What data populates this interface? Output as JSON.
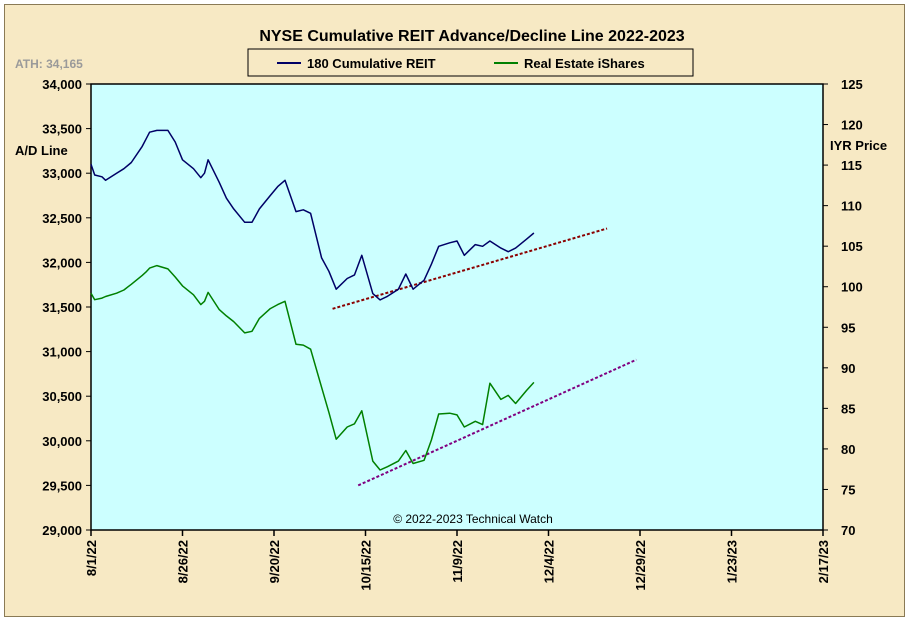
{
  "chart_data": {
    "type": "line",
    "title": "NYSE Cumulative  REIT Advance/Decline  Line 2022-2023",
    "ath_label": "ATH: 34,165",
    "copyright": "© 2022-2023  Technical  Watch",
    "left_axis": {
      "label": "A/D Line",
      "range": [
        29000,
        34000
      ],
      "ticks": [
        "29,000",
        "29,500",
        "30,000",
        "30,500",
        "31,000",
        "31,500",
        "32,000",
        "32,500",
        "33,000",
        "33,500",
        "34,000"
      ],
      "tick_values": [
        29000,
        29500,
        30000,
        30500,
        31000,
        31500,
        32000,
        32500,
        33000,
        33500,
        34000
      ]
    },
    "right_axis": {
      "label": "IYR Price",
      "range": [
        70,
        125
      ],
      "ticks": [
        "70",
        "75",
        "80",
        "85",
        "90",
        "95",
        "100",
        "105",
        "110",
        "115",
        "120",
        "125"
      ],
      "tick_values": [
        70,
        75,
        80,
        85,
        90,
        95,
        100,
        105,
        110,
        115,
        120,
        125
      ]
    },
    "x_axis": {
      "range": [
        "2022-08-01",
        "2023-02-17"
      ],
      "tick_labels": [
        "8/1/22",
        "8/26/22",
        "9/20/22",
        "10/15/22",
        "11/9/22",
        "12/4/22",
        "12/29/22",
        "1/23/23",
        "2/17/23"
      ],
      "tick_dates": [
        "2022-08-01",
        "2022-08-26",
        "2022-09-20",
        "2022-10-15",
        "2022-11-09",
        "2022-12-04",
        "2022-12-29",
        "2023-01-23",
        "2023-02-17"
      ]
    },
    "legend": {
      "placement": "top-center"
    },
    "grid": false,
    "colors": {
      "plot_bg": "#ccffff",
      "frame_bg": "#f7e9c4",
      "ad_line": "#000066",
      "iyr": "#008000",
      "trend_ad": "#8b0000",
      "trend_iyr": "#800080"
    },
    "series": [
      {
        "name": "180 Cumulative REIT",
        "axis": "left",
        "points": [
          [
            "2022-08-01",
            33100
          ],
          [
            "2022-08-02",
            32980
          ],
          [
            "2022-08-04",
            32960
          ],
          [
            "2022-08-05",
            32920
          ],
          [
            "2022-08-08",
            33000
          ],
          [
            "2022-08-10",
            33050
          ],
          [
            "2022-08-12",
            33120
          ],
          [
            "2022-08-15",
            33300
          ],
          [
            "2022-08-16",
            33380
          ],
          [
            "2022-08-17",
            33460
          ],
          [
            "2022-08-19",
            33480
          ],
          [
            "2022-08-22",
            33480
          ],
          [
            "2022-08-24",
            33350
          ],
          [
            "2022-08-26",
            33150
          ],
          [
            "2022-08-29",
            33050
          ],
          [
            "2022-08-31",
            32950
          ],
          [
            "2022-09-01",
            33000
          ],
          [
            "2022-09-02",
            33150
          ],
          [
            "2022-09-05",
            32900
          ],
          [
            "2022-09-07",
            32720
          ],
          [
            "2022-09-09",
            32600
          ],
          [
            "2022-09-12",
            32450
          ],
          [
            "2022-09-14",
            32450
          ],
          [
            "2022-09-16",
            32600
          ],
          [
            "2022-09-19",
            32750
          ],
          [
            "2022-09-21",
            32850
          ],
          [
            "2022-09-23",
            32920
          ],
          [
            "2022-09-26",
            32570
          ],
          [
            "2022-09-28",
            32590
          ],
          [
            "2022-09-30",
            32550
          ],
          [
            "2022-10-03",
            32050
          ],
          [
            "2022-10-05",
            31900
          ],
          [
            "2022-10-07",
            31700
          ],
          [
            "2022-10-10",
            31820
          ],
          [
            "2022-10-12",
            31860
          ],
          [
            "2022-10-14",
            32080
          ],
          [
            "2022-10-17",
            31650
          ],
          [
            "2022-10-19",
            31580
          ],
          [
            "2022-10-21",
            31620
          ],
          [
            "2022-10-24",
            31700
          ],
          [
            "2022-10-26",
            31870
          ],
          [
            "2022-10-28",
            31700
          ],
          [
            "2022-10-31",
            31800
          ],
          [
            "2022-11-02",
            31980
          ],
          [
            "2022-11-04",
            32180
          ],
          [
            "2022-11-07",
            32220
          ],
          [
            "2022-11-09",
            32240
          ],
          [
            "2022-11-11",
            32080
          ],
          [
            "2022-11-14",
            32200
          ],
          [
            "2022-11-16",
            32180
          ],
          [
            "2022-11-18",
            32240
          ],
          [
            "2022-11-21",
            32160
          ],
          [
            "2022-11-23",
            32120
          ],
          [
            "2022-11-25",
            32160
          ],
          [
            "2022-11-28",
            32260
          ],
          [
            "2022-11-30",
            32330
          ]
        ]
      },
      {
        "name": "Real Estate iShares",
        "axis": "right",
        "points": [
          [
            "2022-08-01",
            99.2
          ],
          [
            "2022-08-02",
            98.4
          ],
          [
            "2022-08-04",
            98.6
          ],
          [
            "2022-08-05",
            98.8
          ],
          [
            "2022-08-08",
            99.2
          ],
          [
            "2022-08-10",
            99.6
          ],
          [
            "2022-08-12",
            100.3
          ],
          [
            "2022-08-15",
            101.4
          ],
          [
            "2022-08-16",
            101.8
          ],
          [
            "2022-08-17",
            102.3
          ],
          [
            "2022-08-19",
            102.6
          ],
          [
            "2022-08-22",
            102.2
          ],
          [
            "2022-08-24",
            101.2
          ],
          [
            "2022-08-26",
            100.1
          ],
          [
            "2022-08-29",
            99.0
          ],
          [
            "2022-08-31",
            97.8
          ],
          [
            "2022-09-01",
            98.2
          ],
          [
            "2022-09-02",
            99.3
          ],
          [
            "2022-09-05",
            97.2
          ],
          [
            "2022-09-07",
            96.4
          ],
          [
            "2022-09-09",
            95.7
          ],
          [
            "2022-09-12",
            94.3
          ],
          [
            "2022-09-14",
            94.5
          ],
          [
            "2022-09-16",
            96.1
          ],
          [
            "2022-09-19",
            97.3
          ],
          [
            "2022-09-21",
            97.8
          ],
          [
            "2022-09-23",
            98.2
          ],
          [
            "2022-09-26",
            92.9
          ],
          [
            "2022-09-28",
            92.8
          ],
          [
            "2022-09-30",
            92.3
          ],
          [
            "2022-10-03",
            87.6
          ],
          [
            "2022-10-05",
            84.5
          ],
          [
            "2022-10-07",
            81.2
          ],
          [
            "2022-10-10",
            82.7
          ],
          [
            "2022-10-12",
            83.1
          ],
          [
            "2022-10-14",
            84.7
          ],
          [
            "2022-10-17",
            78.5
          ],
          [
            "2022-10-19",
            77.4
          ],
          [
            "2022-10-21",
            77.8
          ],
          [
            "2022-10-24",
            78.5
          ],
          [
            "2022-10-26",
            79.8
          ],
          [
            "2022-10-28",
            78.2
          ],
          [
            "2022-10-31",
            78.6
          ],
          [
            "2022-11-02",
            81.1
          ],
          [
            "2022-11-04",
            84.3
          ],
          [
            "2022-11-07",
            84.4
          ],
          [
            "2022-11-09",
            84.2
          ],
          [
            "2022-11-11",
            82.7
          ],
          [
            "2022-11-14",
            83.4
          ],
          [
            "2022-11-16",
            83.0
          ],
          [
            "2022-11-18",
            88.1
          ],
          [
            "2022-11-21",
            86.1
          ],
          [
            "2022-11-23",
            86.6
          ],
          [
            "2022-11-25",
            85.6
          ],
          [
            "2022-11-28",
            87.2
          ],
          [
            "2022-11-30",
            88.2
          ]
        ]
      }
    ],
    "trendlines": [
      {
        "axis": "left",
        "start": [
          "2022-10-06",
          31480
        ],
        "end": [
          "2022-12-20",
          32380
        ]
      },
      {
        "axis": "right",
        "start": [
          "2022-10-13",
          75.5
        ],
        "end": [
          "2022-12-28",
          91.0
        ]
      }
    ]
  }
}
